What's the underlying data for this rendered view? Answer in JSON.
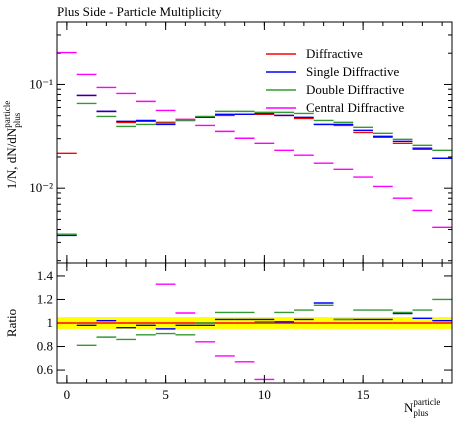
{
  "chart_data": [
    {
      "type": "histogram",
      "title": "Plus Side - Particle Multiplicity",
      "y_label": {
        "text": "1/N, dN/dN",
        "sup": "particle",
        "sub": "plus"
      },
      "log_y": true,
      "legend": "top-right",
      "bins": [
        -0.5,
        0.5,
        1.5,
        2.5,
        3.5,
        4.5,
        5.5,
        6.5,
        7.5,
        8.5,
        9.5,
        10.5,
        11.5,
        12.5,
        13.5,
        14.5,
        15.5,
        16.5,
        17.5,
        18.5,
        19.5
      ],
      "xlim": [
        -0.5,
        19.5
      ],
      "ylim": [
        0.0019,
        0.4
      ],
      "yticks": [
        {
          "value": 0.1,
          "label": "10⁻¹"
        },
        {
          "value": 0.01,
          "label": "10⁻²"
        }
      ],
      "series": [
        {
          "name": "Diffractive",
          "color": "#ff0000",
          "values": [
            0.0217,
            0.0784,
            0.055,
            0.0431,
            0.0441,
            0.0431,
            0.046,
            0.0482,
            0.0503,
            0.0515,
            0.0515,
            0.0503,
            0.0471,
            0.0412,
            0.0403,
            0.0345,
            0.0309,
            0.0271,
            0.0237,
            0.0194
          ]
        },
        {
          "name": "Single Diffractive",
          "color": "#0000ff",
          "values": [
            0.0035,
            0.0784,
            0.055,
            0.0441,
            0.045,
            0.0412,
            0.045,
            0.0482,
            0.0515,
            0.0515,
            0.0526,
            0.0503,
            0.0482,
            0.0412,
            0.0412,
            0.0361,
            0.0316,
            0.0283,
            0.0243,
            0.0194
          ]
        },
        {
          "name": "Double Diffractive",
          "color": "#339933",
          "values": [
            0.0036,
            0.0656,
            0.0492,
            0.0394,
            0.0412,
            0.0422,
            0.045,
            0.0492,
            0.055,
            0.055,
            0.0538,
            0.0538,
            0.0526,
            0.045,
            0.0431,
            0.0386,
            0.0338,
            0.0296,
            0.0259,
            0.0232
          ]
        },
        {
          "name": "Central Diffractive",
          "color": "#ff00ff",
          "values": [
            0.203,
            0.125,
            0.0936,
            0.082,
            0.0687,
            0.0562,
            0.046,
            0.0403,
            0.0353,
            0.0303,
            0.0271,
            0.0232,
            0.0208,
            0.0174,
            0.0152,
            0.0128,
            0.0104,
            0.008,
            0.0061,
            0.0042
          ]
        }
      ]
    },
    {
      "type": "histogram",
      "y_label": "Ratio",
      "x_label": {
        "base": "N",
        "sup": "particle",
        "sub": "plus"
      },
      "bins": [
        -0.5,
        0.5,
        1.5,
        2.5,
        3.5,
        4.5,
        5.5,
        6.5,
        7.5,
        8.5,
        9.5,
        10.5,
        11.5,
        12.5,
        13.5,
        14.5,
        15.5,
        16.5,
        17.5,
        18.5,
        19.5
      ],
      "xlim": [
        -0.5,
        19.5
      ],
      "xticks": [
        0,
        5,
        10,
        15
      ],
      "ylim": [
        0.49,
        1.51
      ],
      "yticks": [
        0.6,
        0.8,
        1,
        1.2,
        1.4
      ],
      "band": {
        "color": "#ffff00",
        "lower": 0.95,
        "upper": 1.05
      },
      "series": [
        {
          "color": "#ff0000",
          "values": [
            1,
            1,
            1,
            1,
            1,
            1,
            1,
            1,
            1,
            1,
            1,
            1,
            1,
            1,
            1,
            1,
            1,
            1,
            1,
            1
          ]
        },
        {
          "color": "#0000ff",
          "values": [
            null,
            0.98,
            1.02,
            0.96,
            0.98,
            0.95,
            0.98,
            0.98,
            1.03,
            1.03,
            1.03,
            1.01,
            1.03,
            1.17,
            1.03,
            1.03,
            1.03,
            1.08,
            1.04,
            1.02
          ]
        },
        {
          "color": "#339933",
          "values": [
            null,
            0.81,
            0.88,
            0.86,
            0.9,
            0.91,
            0.9,
            1.0,
            1.09,
            1.09,
            1.01,
            1.09,
            1.11,
            1.15,
            1.03,
            1.11,
            1.11,
            1.09,
            1.11,
            1.2
          ]
        },
        {
          "color": "#ff00ff",
          "values": [
            null,
            null,
            null,
            null,
            null,
            1.33,
            1.085,
            0.84,
            0.72,
            0.67,
            0.52,
            null,
            null,
            null,
            null,
            null,
            null,
            null,
            null,
            null
          ]
        }
      ]
    }
  ]
}
